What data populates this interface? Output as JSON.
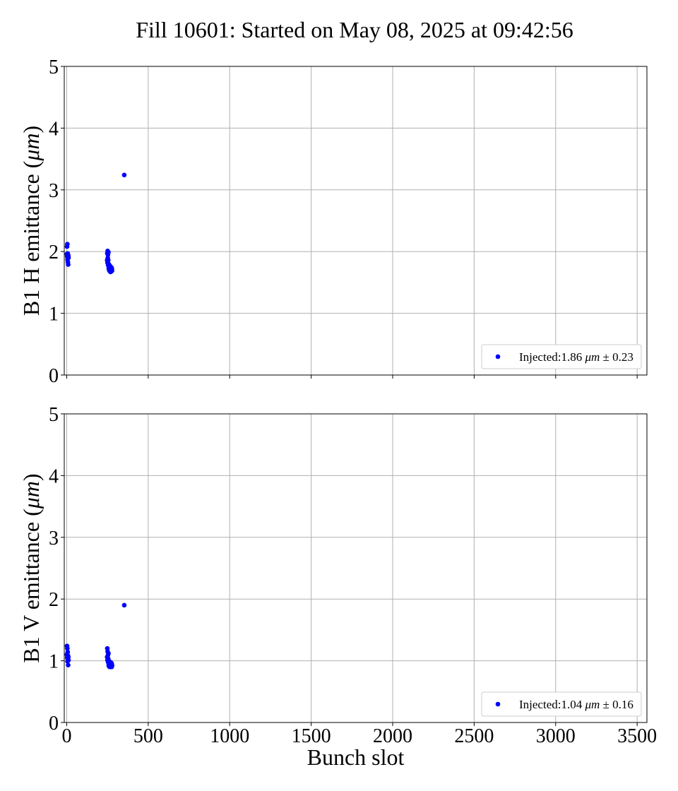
{
  "title": "Fill 10601: Started on May 08, 2025 at 09:42:56",
  "chart_data": [
    {
      "type": "scatter",
      "name": "top",
      "ylabel": "B1 H emittance (μm)",
      "ylim": [
        0,
        5
      ],
      "yticks": [
        0,
        1,
        2,
        3,
        4,
        5
      ],
      "xlim": [
        -15,
        3560
      ],
      "xticks": [
        0,
        500,
        1000,
        1500,
        2000,
        2500,
        3000,
        3500
      ],
      "grid": true,
      "legend": "lower right",
      "color": "#0000ff",
      "series": [
        {
          "name": "Injected:1.86 μm ± 0.23",
          "x": [
            1,
            2,
            3,
            4,
            5,
            6,
            7,
            8,
            9,
            10,
            11,
            248,
            249,
            250,
            251,
            252,
            253,
            254,
            255,
            256,
            257,
            258,
            259,
            260,
            261,
            262,
            263,
            264,
            265,
            266,
            267,
            268,
            269,
            270,
            271,
            272,
            273,
            274,
            275,
            276,
            277,
            278,
            353
          ],
          "y": [
            1.96,
            2.08,
            1.92,
            2.12,
            1.87,
            1.97,
            1.83,
            1.95,
            1.79,
            1.93,
            1.9,
            1.86,
            1.97,
            1.82,
            2.01,
            1.9,
            1.95,
            1.78,
            1.86,
            1.99,
            1.8,
            1.73,
            1.79,
            1.7,
            1.75,
            1.78,
            1.69,
            1.73,
            1.68,
            1.74,
            1.71,
            1.76,
            1.67,
            1.72,
            1.69,
            1.73,
            1.71,
            1.68,
            1.74,
            1.7,
            1.72,
            1.69,
            3.24
          ]
        }
      ]
    },
    {
      "type": "scatter",
      "name": "bottom",
      "ylabel": "B1 V emittance (μm)",
      "xlabel": "Bunch slot",
      "ylim": [
        0,
        5
      ],
      "yticks": [
        0,
        1,
        2,
        3,
        4,
        5
      ],
      "xlim": [
        -15,
        3560
      ],
      "xticks": [
        0,
        500,
        1000,
        1500,
        2000,
        2500,
        3000,
        3500
      ],
      "grid": true,
      "legend": "lower right",
      "color": "#0000ff",
      "series": [
        {
          "name": "Injected:1.04 μm ± 0.16",
          "x": [
            1,
            2,
            3,
            4,
            5,
            6,
            7,
            8,
            9,
            10,
            11,
            248,
            249,
            250,
            251,
            252,
            253,
            254,
            255,
            256,
            257,
            258,
            259,
            260,
            261,
            262,
            263,
            264,
            265,
            266,
            267,
            268,
            269,
            270,
            271,
            272,
            273,
            274,
            275,
            276,
            277,
            278,
            353
          ],
          "y": [
            1.1,
            1.24,
            1.05,
            1.2,
            0.99,
            1.14,
            1.02,
            1.08,
            0.93,
            1.06,
            1.01,
            1.06,
            1.2,
            1.01,
            1.15,
            1.04,
            1.09,
            0.98,
            1.03,
            1.12,
            0.96,
            0.92,
            0.97,
            0.91,
            0.95,
            0.99,
            0.9,
            0.94,
            0.93,
            0.96,
            0.91,
            0.95,
            0.9,
            0.94,
            0.92,
            0.97,
            0.91,
            0.93,
            0.96,
            0.9,
            0.94,
            0.92,
            1.9
          ]
        }
      ]
    }
  ]
}
